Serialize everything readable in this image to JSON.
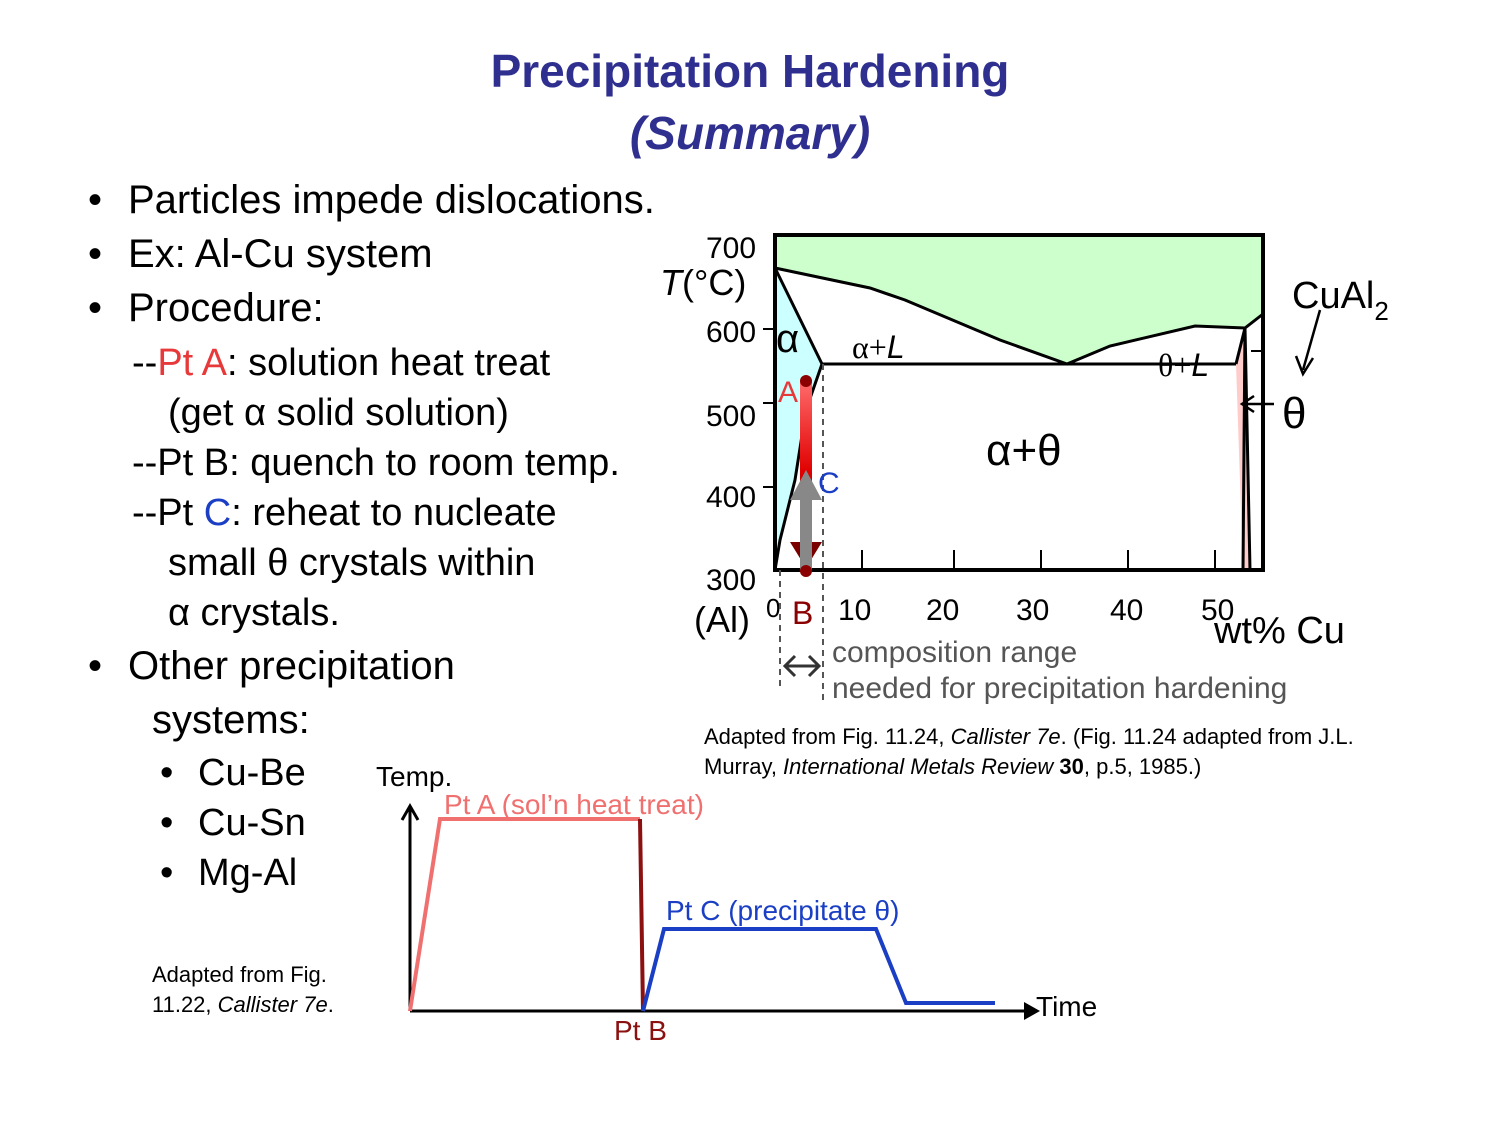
{
  "title": {
    "line1": "Precipitation Hardening",
    "line2": "(Summary)"
  },
  "bullets": {
    "b1": "Particles impede dislocations.",
    "b2": "Ex:  Al-Cu system",
    "b3": "Procedure:",
    "bullet_symbol": "•"
  },
  "procedure": {
    "a_prefix": "--",
    "a_pt": "Pt A",
    "a_text": ": solution heat treat",
    "a_line2": "(get α solid solution)",
    "b_line": "--Pt B: quench to room temp.",
    "c_prefix": "--Pt ",
    "c_pt": "C",
    "c_text": ": reheat to nucleate",
    "c_line2": "small θ crystals within",
    "c_line3": "α crystals."
  },
  "other": {
    "heading1": "Other precipitation",
    "heading2": "systems:",
    "items": [
      "Cu-Be",
      "Cu-Sn",
      "Mg-Al"
    ]
  },
  "credits": {
    "left_line1": "Adapted from Fig.",
    "left_line2_a": "11.22, ",
    "left_line2_b": "Callister 7e",
    "left_line2_c": ".",
    "right_line1_a": "Adapted from Fig. 11.24, ",
    "right_line1_b": "Callister 7e",
    "right_line1_c": ".  (Fig. 11.24 adapted from J.L.",
    "right_line2_a": "Murray, ",
    "right_line2_b": "International Metals Review",
    "right_line2_c": " 30",
    "right_line2_d": ", p.5, 1985.)"
  },
  "phase_diagram": {
    "y_label_T": "T",
    "y_label_unit": "(°C)",
    "y_ticks": [
      "700",
      "600",
      "500",
      "400",
      "300"
    ],
    "x_ticks": [
      "0",
      "10",
      "20",
      "30",
      "40",
      "50"
    ],
    "x_left_label": "(Al)",
    "x_axis_label": "wt% Cu",
    "region_alpha": "α",
    "region_alpha_L": "α+",
    "region_L1": "L",
    "region_theta_L": "θ+",
    "region_L2": "L",
    "region_alpha_theta": "α+θ",
    "compound": "CuAl",
    "compound_sub": "2",
    "theta_label": "θ",
    "point_A": "A",
    "point_B": "B",
    "point_C": "C",
    "range_note_1": "composition range",
    "range_note_2": "needed for precipitation hardening",
    "colors": {
      "liquid": "#ccffcc",
      "alpha": "#ccffff",
      "theta": "#ffcccc",
      "A": "#e8393a",
      "B": "#8b0000",
      "C": "#1b3fc4"
    }
  },
  "time_plot": {
    "y_label": "Temp.",
    "x_label": "Time",
    "pt_A_label": "Pt A (sol’n heat treat)",
    "pt_B_label": "Pt B",
    "pt_C_label": "Pt C (precipitate θ)",
    "colors": {
      "A": "#f07070",
      "B": "#8b1010",
      "C": "#1b3fc4"
    }
  }
}
